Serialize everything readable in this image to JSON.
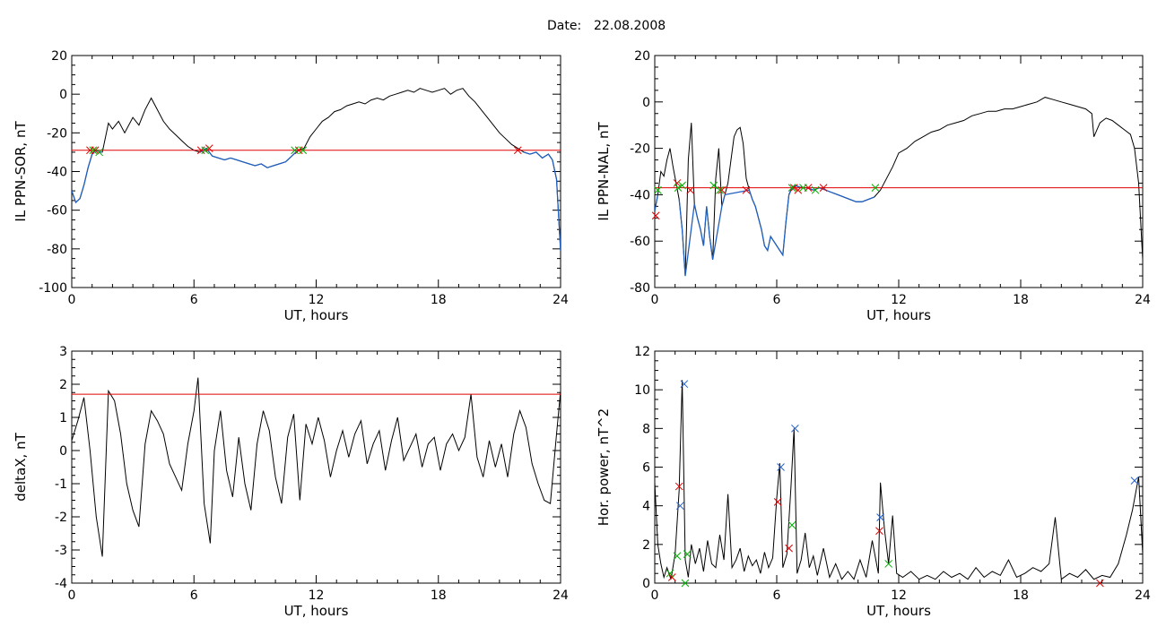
{
  "figure": {
    "title_label": "Date:",
    "title_date": "22.08.2008"
  },
  "colors": {
    "trace": "#000000",
    "quiet_trace": "#1f5fbf",
    "threshold": "#e00000",
    "marker_red": "#e00000",
    "marker_green": "#00b000",
    "marker_blue": "#2060d0"
  },
  "chart_data": [
    {
      "id": "sor",
      "type": "line",
      "title": "",
      "xlabel": "UT, hours",
      "ylabel": "IL PPN-SOR, nT",
      "xlim": [
        0,
        24
      ],
      "ylim": [
        -100,
        20
      ],
      "xticks": [
        0,
        6,
        12,
        18,
        24
      ],
      "yticks": [
        -100,
        -80,
        -60,
        -40,
        -20,
        0,
        20
      ],
      "threshold": -29,
      "quiet_intervals": [
        [
          0,
          1.5
        ],
        [
          6.3,
          11.3
        ],
        [
          22,
          24
        ]
      ],
      "series": [
        {
          "x": [
            0,
            0.2,
            0.4,
            0.6,
            0.8,
            1.0,
            1.2,
            1.4,
            1.5,
            1.8,
            2.0,
            2.3,
            2.6,
            3.0,
            3.3,
            3.6,
            3.9,
            4.2,
            4.5,
            4.8,
            5.1,
            5.4,
            5.7,
            6.0,
            6.3,
            6.6,
            6.9,
            7.2,
            7.5,
            7.8,
            8.1,
            8.4,
            8.7,
            9.0,
            9.3,
            9.6,
            9.9,
            10.2,
            10.5,
            10.8,
            11.1,
            11.4,
            11.7,
            12.0,
            12.3,
            12.6,
            12.9,
            13.2,
            13.5,
            13.8,
            14.1,
            14.4,
            14.7,
            15.0,
            15.3,
            15.6,
            15.9,
            16.2,
            16.5,
            16.8,
            17.1,
            17.4,
            17.7,
            18.0,
            18.3,
            18.6,
            18.9,
            19.2,
            19.5,
            19.8,
            20.1,
            20.4,
            20.7,
            21.0,
            21.3,
            21.6,
            21.9,
            22.2,
            22.5,
            22.8,
            23.1,
            23.4,
            23.6,
            23.8,
            24.0
          ],
          "values": [
            -50,
            -56,
            -54,
            -47,
            -38,
            -31,
            -29,
            -30,
            -30,
            -15,
            -18,
            -14,
            -20,
            -12,
            -16,
            -8,
            -2,
            -8,
            -14,
            -18,
            -21,
            -24,
            -27,
            -29,
            -30,
            -28,
            -32,
            -33,
            -34,
            -33,
            -34,
            -35,
            -36,
            -37,
            -36,
            -38,
            -37,
            -36,
            -35,
            -32,
            -29,
            -28,
            -22,
            -18,
            -14,
            -12,
            -9,
            -8,
            -6,
            -5,
            -4,
            -5,
            -3,
            -2,
            -3,
            -1,
            0,
            1,
            2,
            1,
            3,
            2,
            1,
            2,
            3,
            0,
            2,
            3,
            -1,
            -4,
            -8,
            -12,
            -16,
            -20,
            -23,
            -26,
            -28,
            -30,
            -31,
            -30,
            -33,
            -31,
            -34,
            -44,
            -81
          ]
        }
      ],
      "markers": [
        {
          "color": "red",
          "x": [
            0.9,
            1.15,
            6.35,
            6.75,
            11.15,
            21.9
          ],
          "y": [
            -29,
            -29,
            -29,
            -28,
            -29,
            -29
          ]
        },
        {
          "color": "green",
          "x": [
            1.05,
            1.35,
            6.55,
            10.95,
            11.35
          ],
          "y": [
            -29,
            -30,
            -29,
            -29,
            -29
          ]
        }
      ]
    },
    {
      "id": "nal",
      "type": "line",
      "title": "",
      "xlabel": "UT, hours",
      "ylabel": "IL PPN-NAL, nT",
      "xlim": [
        0,
        24
      ],
      "ylim": [
        -80,
        20
      ],
      "xticks": [
        0,
        6,
        12,
        18,
        24
      ],
      "yticks": [
        -80,
        -60,
        -40,
        -20,
        0,
        20
      ],
      "threshold": -37,
      "quiet_intervals": [
        [
          0,
          0.6
        ],
        [
          1.1,
          7.0
        ],
        [
          6.5,
          11.0
        ]
      ],
      "series": [
        {
          "x": [
            0,
            0.15,
            0.3,
            0.45,
            0.6,
            0.75,
            0.9,
            1.05,
            1.2,
            1.35,
            1.5,
            1.65,
            1.8,
            1.95,
            2.1,
            2.25,
            2.4,
            2.55,
            2.7,
            2.85,
            3.0,
            3.15,
            3.3,
            3.45,
            3.6,
            3.75,
            3.9,
            4.05,
            4.2,
            4.35,
            4.5,
            4.65,
            4.8,
            4.95,
            5.1,
            5.25,
            5.4,
            5.55,
            5.7,
            5.85,
            6.0,
            6.15,
            6.3,
            6.45,
            6.6,
            6.75,
            6.9,
            7.2,
            7.5,
            7.8,
            8.1,
            8.4,
            8.7,
            9.0,
            9.3,
            9.6,
            9.9,
            10.2,
            10.5,
            10.8,
            11.1,
            11.4,
            11.7,
            12.0,
            12.4,
            12.8,
            13.2,
            13.6,
            14.0,
            14.4,
            14.8,
            15.2,
            15.6,
            16.0,
            16.4,
            16.8,
            17.2,
            17.6,
            18.0,
            18.4,
            18.8,
            19.2,
            19.6,
            20.0,
            20.4,
            20.8,
            21.2,
            21.5,
            21.6,
            21.9,
            22.2,
            22.5,
            22.8,
            23.1,
            23.4,
            23.6,
            23.8,
            24.0
          ],
          "values": [
            -47,
            -40,
            -30,
            -32,
            -25,
            -20,
            -28,
            -35,
            -42,
            -55,
            -75,
            -25,
            -9,
            -44,
            -50,
            -55,
            -62,
            -45,
            -58,
            -68,
            -33,
            -20,
            -45,
            -40,
            -35,
            -25,
            -15,
            -12,
            -11,
            -18,
            -33,
            -38,
            -42,
            -45,
            -50,
            -55,
            -62,
            -64,
            -58,
            -60,
            -62,
            -64,
            -66,
            -52,
            -40,
            -37,
            -36,
            -37,
            -37,
            -38,
            -37,
            -38,
            -39,
            -40,
            -41,
            -42,
            -43,
            -43,
            -42,
            -41,
            -38,
            -33,
            -28,
            -22,
            -20,
            -17,
            -15,
            -13,
            -12,
            -10,
            -9,
            -8,
            -6,
            -5,
            -4,
            -4,
            -3,
            -3,
            -2,
            -1,
            0,
            2,
            1,
            0,
            -1,
            -2,
            -3,
            -5,
            -15,
            -9,
            -7,
            -8,
            -10,
            -12,
            -14,
            -20,
            -35,
            -68
          ]
        }
      ],
      "markers": [
        {
          "color": "red",
          "x": [
            0.05,
            1.1,
            1.75,
            3.3,
            4.5,
            6.85,
            7.05,
            7.55,
            8.3
          ],
          "y": [
            -49,
            -35,
            -38,
            -38,
            -38,
            -37,
            -38,
            -37,
            -37
          ]
        },
        {
          "color": "green",
          "x": [
            0.15,
            1.15,
            1.35,
            2.9,
            3.2,
            6.75,
            7.3,
            7.9,
            10.85
          ],
          "y": [
            -38,
            -37,
            -36,
            -36,
            -38,
            -37,
            -37,
            -38,
            -37
          ]
        }
      ]
    },
    {
      "id": "deltax",
      "type": "line",
      "title": "",
      "xlabel": "UT, hours",
      "ylabel": "deltaX, nT",
      "xlim": [
        0,
        24
      ],
      "ylim": [
        -4,
        3
      ],
      "xticks": [
        0,
        6,
        12,
        18,
        24
      ],
      "yticks": [
        -4,
        -3,
        -2,
        -1,
        0,
        1,
        2,
        3
      ],
      "threshold": 1.7,
      "series": [
        {
          "x": [
            0,
            0.3,
            0.6,
            0.9,
            1.2,
            1.5,
            1.8,
            2.1,
            2.4,
            2.7,
            3.0,
            3.3,
            3.6,
            3.9,
            4.2,
            4.5,
            4.8,
            5.1,
            5.4,
            5.7,
            6.0,
            6.2,
            6.5,
            6.8,
            7.0,
            7.3,
            7.6,
            7.9,
            8.2,
            8.5,
            8.8,
            9.1,
            9.4,
            9.7,
            10.0,
            10.3,
            10.6,
            10.9,
            11.2,
            11.5,
            11.8,
            12.1,
            12.4,
            12.7,
            13.0,
            13.3,
            13.6,
            13.9,
            14.2,
            14.5,
            14.8,
            15.1,
            15.4,
            15.7,
            16.0,
            16.3,
            16.6,
            16.9,
            17.2,
            17.5,
            17.8,
            18.1,
            18.4,
            18.7,
            19.0,
            19.3,
            19.6,
            19.9,
            20.2,
            20.5,
            20.8,
            21.1,
            21.4,
            21.7,
            22.0,
            22.3,
            22.6,
            22.9,
            23.2,
            23.5,
            23.8,
            24.0
          ],
          "values": [
            0.3,
            0.9,
            1.6,
            0.0,
            -2.0,
            -3.2,
            1.8,
            1.5,
            0.5,
            -1.0,
            -1.8,
            -2.3,
            0.2,
            1.2,
            0.9,
            0.5,
            -0.4,
            -0.8,
            -1.2,
            0.2,
            1.2,
            2.2,
            -1.6,
            -2.8,
            0.0,
            1.2,
            -0.6,
            -1.4,
            0.4,
            -1.0,
            -1.8,
            0.2,
            1.2,
            0.6,
            -0.8,
            -1.6,
            0.4,
            1.1,
            -1.5,
            0.8,
            0.2,
            1.0,
            0.3,
            -0.8,
            0.0,
            0.6,
            -0.2,
            0.5,
            0.9,
            -0.4,
            0.2,
            0.6,
            -0.6,
            0.3,
            1.0,
            -0.3,
            0.1,
            0.5,
            -0.5,
            0.2,
            0.4,
            -0.6,
            0.2,
            0.5,
            0.0,
            0.4,
            1.7,
            -0.2,
            -0.8,
            0.3,
            -0.5,
            0.2,
            -0.8,
            0.5,
            1.2,
            0.7,
            -0.4,
            -1.0,
            -1.5,
            -1.6,
            0.5,
            1.8
          ]
        }
      ]
    },
    {
      "id": "power",
      "type": "line",
      "title": "",
      "xlabel": "UT, hours",
      "ylabel": "Hor. power, nT^2",
      "xlim": [
        0,
        24
      ],
      "ylim": [
        0,
        12
      ],
      "xticks": [
        0,
        6,
        12,
        18,
        24
      ],
      "yticks": [
        0,
        2,
        4,
        6,
        8,
        10,
        12
      ],
      "series": [
        {
          "x": [
            0,
            0.15,
            0.3,
            0.45,
            0.6,
            0.8,
            1.0,
            1.2,
            1.35,
            1.5,
            1.65,
            1.8,
            2.0,
            2.2,
            2.4,
            2.6,
            2.8,
            3.0,
            3.2,
            3.4,
            3.6,
            3.8,
            4.0,
            4.2,
            4.4,
            4.6,
            4.8,
            5.0,
            5.2,
            5.4,
            5.6,
            5.8,
            6.0,
            6.15,
            6.3,
            6.5,
            6.7,
            6.85,
            7.0,
            7.2,
            7.4,
            7.6,
            7.8,
            8.0,
            8.3,
            8.6,
            8.9,
            9.2,
            9.5,
            9.8,
            10.1,
            10.4,
            10.7,
            11.0,
            11.1,
            11.3,
            11.5,
            11.7,
            11.9,
            12.2,
            12.6,
            13.0,
            13.4,
            13.8,
            14.2,
            14.6,
            15.0,
            15.4,
            15.8,
            16.2,
            16.6,
            17.0,
            17.4,
            17.8,
            18.2,
            18.6,
            19.0,
            19.4,
            19.7,
            20.0,
            20.4,
            20.8,
            21.2,
            21.6,
            22.0,
            22.4,
            22.8,
            23.2,
            23.5,
            23.8,
            24.0
          ],
          "values": [
            5.2,
            2.0,
            1.0,
            0.3,
            0.8,
            0.2,
            1.5,
            4.8,
            10.5,
            1.2,
            0.3,
            2.0,
            1.0,
            1.8,
            0.6,
            2.2,
            1.0,
            0.8,
            2.5,
            1.2,
            4.6,
            0.8,
            1.2,
            1.8,
            0.6,
            1.4,
            0.9,
            1.2,
            0.5,
            1.6,
            0.8,
            1.3,
            4.4,
            6.2,
            0.8,
            1.5,
            5.0,
            8.0,
            0.5,
            1.2,
            2.6,
            0.8,
            1.4,
            0.4,
            1.8,
            0.3,
            1.0,
            0.2,
            0.6,
            0.2,
            1.2,
            0.3,
            2.2,
            0.5,
            5.2,
            2.8,
            1.0,
            3.5,
            0.5,
            0.3,
            0.6,
            0.2,
            0.4,
            0.2,
            0.6,
            0.3,
            0.5,
            0.2,
            0.8,
            0.3,
            0.6,
            0.4,
            1.2,
            0.3,
            0.5,
            0.8,
            0.6,
            1.0,
            3.4,
            0.2,
            0.5,
            0.3,
            0.7,
            0.2,
            0.4,
            0.3,
            1.0,
            2.5,
            3.8,
            5.5,
            1.5
          ]
        }
      ],
      "markers": [
        {
          "color": "blue",
          "x": [
            1.25,
            1.45,
            6.2,
            6.9,
            11.1,
            23.6
          ],
          "y": [
            4.0,
            10.3,
            6.0,
            8.0,
            3.4,
            5.3
          ]
        },
        {
          "color": "red",
          "x": [
            0.85,
            1.2,
            6.05,
            6.6,
            11.05,
            21.9
          ],
          "y": [
            0.3,
            5.0,
            4.2,
            1.8,
            2.7,
            0.0
          ]
        },
        {
          "color": "green",
          "x": [
            1.1,
            1.6,
            6.75,
            11.5,
            1.5,
            0.75
          ],
          "y": [
            1.4,
            1.5,
            3.0,
            1.0,
            0.0,
            0.5
          ]
        }
      ]
    }
  ]
}
